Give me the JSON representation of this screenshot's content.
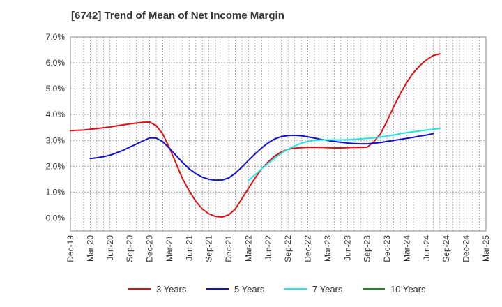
{
  "chart_data": {
    "type": "line",
    "title": "[6742]  Trend of Mean of Net Income Margin",
    "xlabel": "",
    "ylabel": "",
    "ylim": [
      -0.5,
      7.0
    ],
    "x_ticks": [
      "Dec-19",
      "Mar-20",
      "Jun-20",
      "Sep-20",
      "Dec-20",
      "Mar-21",
      "Jun-21",
      "Sep-21",
      "Dec-21",
      "Mar-22",
      "Jun-22",
      "Sep-22",
      "Dec-22",
      "Mar-23",
      "Jun-23",
      "Sep-23",
      "Dec-23",
      "Mar-24",
      "Jun-24",
      "Sep-24",
      "Dec-24",
      "Mar-25"
    ],
    "y_ticks": [
      0,
      1,
      2,
      3,
      4,
      5,
      6,
      7
    ],
    "y_tick_labels": [
      "0.0%",
      "1.0%",
      "2.0%",
      "3.0%",
      "4.0%",
      "5.0%",
      "6.0%",
      "7.0%"
    ],
    "grid": true,
    "legend_position": "bottom",
    "series": [
      {
        "name": "3 Years",
        "color": "#dd1111",
        "points": [
          [
            "Dec-19",
            3.38
          ],
          [
            "Jan-20",
            3.39
          ],
          [
            "Feb-20",
            3.4
          ],
          [
            "Mar-20",
            3.43
          ],
          [
            "Apr-20",
            3.46
          ],
          [
            "May-20",
            3.49
          ],
          [
            "Jun-20",
            3.52
          ],
          [
            "Jul-20",
            3.56
          ],
          [
            "Aug-20",
            3.6
          ],
          [
            "Sep-20",
            3.64
          ],
          [
            "Oct-20",
            3.67
          ],
          [
            "Nov-20",
            3.7
          ],
          [
            "Dec-20",
            3.71
          ],
          [
            "Jan-21",
            3.57
          ],
          [
            "Feb-21",
            3.25
          ],
          [
            "Mar-21",
            2.72
          ],
          [
            "Apr-21",
            2.12
          ],
          [
            "May-21",
            1.52
          ],
          [
            "Jun-21",
            1.05
          ],
          [
            "Jul-21",
            0.65
          ],
          [
            "Aug-21",
            0.35
          ],
          [
            "Sep-21",
            0.16
          ],
          [
            "Oct-21",
            0.06
          ],
          [
            "Nov-21",
            0.04
          ],
          [
            "Dec-21",
            0.12
          ],
          [
            "Jan-22",
            0.35
          ],
          [
            "Feb-22",
            0.75
          ],
          [
            "Mar-22",
            1.15
          ],
          [
            "Apr-22",
            1.55
          ],
          [
            "May-22",
            1.9
          ],
          [
            "Jun-22",
            2.18
          ],
          [
            "Jul-22",
            2.4
          ],
          [
            "Aug-22",
            2.56
          ],
          [
            "Sep-22",
            2.66
          ],
          [
            "Oct-22",
            2.7
          ],
          [
            "Nov-22",
            2.72
          ],
          [
            "Dec-22",
            2.73
          ],
          [
            "Jan-23",
            2.73
          ],
          [
            "Feb-23",
            2.73
          ],
          [
            "Mar-23",
            2.72
          ],
          [
            "Apr-23",
            2.71
          ],
          [
            "May-23",
            2.71
          ],
          [
            "Jun-23",
            2.72
          ],
          [
            "Jul-23",
            2.73
          ],
          [
            "Aug-23",
            2.73
          ],
          [
            "Sep-23",
            2.74
          ],
          [
            "Oct-23",
            2.95
          ],
          [
            "Nov-23",
            3.25
          ],
          [
            "Dec-23",
            3.75
          ],
          [
            "Jan-24",
            4.3
          ],
          [
            "Feb-24",
            4.8
          ],
          [
            "Mar-24",
            5.25
          ],
          [
            "Apr-24",
            5.62
          ],
          [
            "May-24",
            5.9
          ],
          [
            "Jun-24",
            6.12
          ],
          [
            "Jul-24",
            6.28
          ],
          [
            "Aug-24",
            6.35
          ]
        ]
      },
      {
        "name": "5 Years",
        "color": "#1111cc",
        "points": [
          [
            "Mar-20",
            2.3
          ],
          [
            "Apr-20",
            2.33
          ],
          [
            "May-20",
            2.37
          ],
          [
            "Jun-20",
            2.43
          ],
          [
            "Jul-20",
            2.52
          ],
          [
            "Aug-20",
            2.62
          ],
          [
            "Sep-20",
            2.74
          ],
          [
            "Oct-20",
            2.86
          ],
          [
            "Nov-20",
            2.98
          ],
          [
            "Dec-20",
            3.1
          ],
          [
            "Jan-21",
            3.09
          ],
          [
            "Feb-21",
            2.95
          ],
          [
            "Mar-21",
            2.7
          ],
          [
            "Apr-21",
            2.42
          ],
          [
            "May-21",
            2.15
          ],
          [
            "Jun-21",
            1.9
          ],
          [
            "Jul-21",
            1.72
          ],
          [
            "Aug-21",
            1.58
          ],
          [
            "Sep-21",
            1.5
          ],
          [
            "Oct-21",
            1.46
          ],
          [
            "Nov-21",
            1.47
          ],
          [
            "Dec-21",
            1.55
          ],
          [
            "Jan-22",
            1.73
          ],
          [
            "Feb-22",
            1.97
          ],
          [
            "Mar-22",
            2.23
          ],
          [
            "Apr-22",
            2.48
          ],
          [
            "May-22",
            2.71
          ],
          [
            "Jun-22",
            2.91
          ],
          [
            "Jul-22",
            3.06
          ],
          [
            "Aug-22",
            3.15
          ],
          [
            "Sep-22",
            3.19
          ],
          [
            "Oct-22",
            3.2
          ],
          [
            "Nov-22",
            3.18
          ],
          [
            "Dec-22",
            3.14
          ],
          [
            "Jan-23",
            3.09
          ],
          [
            "Feb-23",
            3.04
          ],
          [
            "Mar-23",
            3.0
          ],
          [
            "Apr-23",
            2.96
          ],
          [
            "May-23",
            2.93
          ],
          [
            "Jun-23",
            2.9
          ],
          [
            "Jul-23",
            2.88
          ],
          [
            "Aug-23",
            2.87
          ],
          [
            "Sep-23",
            2.87
          ],
          [
            "Oct-23",
            2.89
          ],
          [
            "Nov-23",
            2.92
          ],
          [
            "Dec-23",
            2.96
          ],
          [
            "Jan-24",
            3.0
          ],
          [
            "Feb-24",
            3.04
          ],
          [
            "Mar-24",
            3.08
          ],
          [
            "Apr-24",
            3.12
          ],
          [
            "May-24",
            3.17
          ],
          [
            "Jun-24",
            3.21
          ],
          [
            "Jul-24",
            3.26
          ]
        ]
      },
      {
        "name": "7 Years",
        "color": "#22e5e5",
        "points": [
          [
            "Mar-22",
            1.45
          ],
          [
            "Apr-22",
            1.68
          ],
          [
            "May-22",
            1.9
          ],
          [
            "Jun-22",
            2.12
          ],
          [
            "Jul-22",
            2.32
          ],
          [
            "Aug-22",
            2.51
          ],
          [
            "Sep-22",
            2.66
          ],
          [
            "Oct-22",
            2.79
          ],
          [
            "Nov-22",
            2.89
          ],
          [
            "Dec-22",
            2.96
          ],
          [
            "Jan-23",
            3.0
          ],
          [
            "Feb-23",
            3.02
          ],
          [
            "Mar-23",
            3.02
          ],
          [
            "Apr-23",
            3.02
          ],
          [
            "May-23",
            3.02
          ],
          [
            "Jun-23",
            3.03
          ],
          [
            "Jul-23",
            3.04
          ],
          [
            "Aug-23",
            3.06
          ],
          [
            "Sep-23",
            3.08
          ],
          [
            "Oct-23",
            3.1
          ],
          [
            "Nov-23",
            3.13
          ],
          [
            "Dec-23",
            3.17
          ],
          [
            "Jan-24",
            3.21
          ],
          [
            "Feb-24",
            3.26
          ],
          [
            "Mar-24",
            3.3
          ],
          [
            "Apr-24",
            3.34
          ],
          [
            "May-24",
            3.37
          ],
          [
            "Jun-24",
            3.4
          ],
          [
            "Jul-24",
            3.43
          ],
          [
            "Aug-24",
            3.46
          ]
        ]
      },
      {
        "name": "10 Years",
        "color": "#228822",
        "points": []
      }
    ]
  }
}
